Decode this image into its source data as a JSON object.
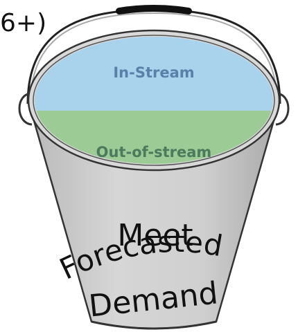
{
  "corner_text": "6+)",
  "water": {
    "top_label": "In-Stream",
    "bottom_label": "Out-of-stream"
  },
  "bucket_label": {
    "line1": "Meet",
    "line2": "Forecasted",
    "line3": "Demand"
  }
}
